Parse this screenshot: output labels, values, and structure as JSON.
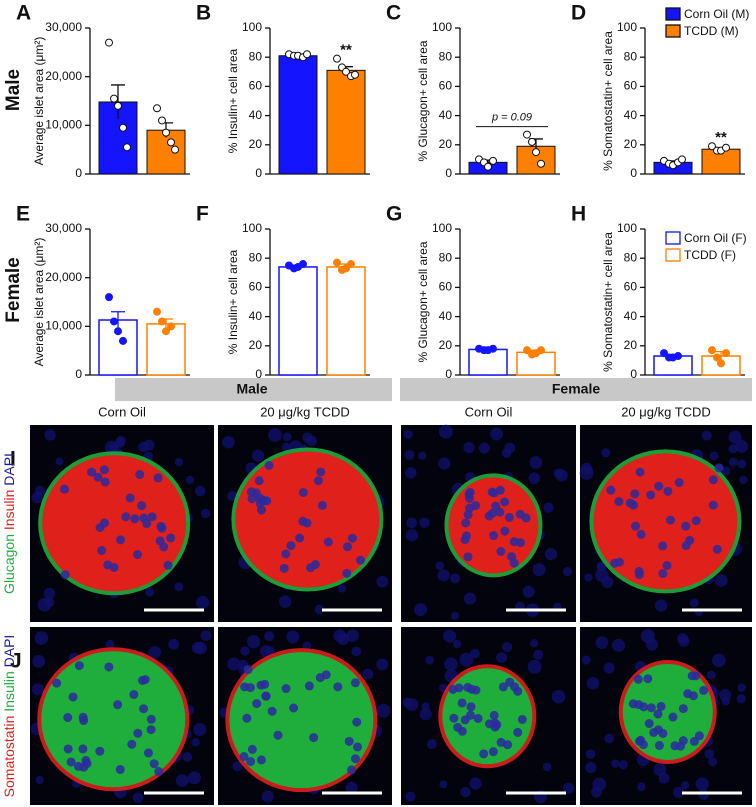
{
  "row_labels": [
    "Male",
    "Female"
  ],
  "chart_data": [
    {
      "type": "bar",
      "panel": "A",
      "ylabel": "Average islet area (μm²)",
      "ylim": [
        0,
        30000
      ],
      "yticks": [
        0,
        {
          "value": 10000,
          "label": "10,000"
        },
        {
          "value": 20000,
          "label": "20,000"
        },
        {
          "value": 30000,
          "label": "30,000"
        }
      ],
      "filled": true,
      "series": [
        {
          "color": "#1414ff",
          "values": [
            14800
          ],
          "errors": [
            3500
          ],
          "points": [
            27000,
            15500,
            14000,
            9500,
            5500
          ]
        },
        {
          "color": "#ff8000",
          "values": [
            9000
          ],
          "errors": [
            1500
          ],
          "points": [
            13500,
            11000,
            8500,
            6500,
            5000
          ]
        }
      ]
    },
    {
      "type": "bar",
      "panel": "B",
      "ylabel": "% Insulin+ cell area",
      "ylim": [
        0,
        100
      ],
      "yticks": [
        0,
        20,
        40,
        60,
        80,
        100
      ],
      "filled": true,
      "series": [
        {
          "color": "#1414ff",
          "values": [
            81
          ],
          "errors": [
            1
          ],
          "points": [
            82,
            81,
            81,
            80,
            82
          ]
        },
        {
          "color": "#ff8000",
          "values": [
            71
          ],
          "errors": [
            2.5
          ],
          "points": [
            79,
            73,
            70,
            67,
            68
          ],
          "annotation": "**"
        }
      ]
    },
    {
      "type": "bar",
      "panel": "C",
      "ylabel": "% Glucagon+ cell area",
      "ylim": [
        0,
        100
      ],
      "yticks": [
        0,
        20,
        40,
        60,
        80,
        100
      ],
      "filled": true,
      "comparison": "p = 0.09",
      "series": [
        {
          "color": "#1414ff",
          "values": [
            8
          ],
          "errors": [
            1.5
          ],
          "points": [
            10,
            8,
            5,
            9
          ]
        },
        {
          "color": "#ff8000",
          "values": [
            19
          ],
          "errors": [
            5
          ],
          "points": [
            27,
            22,
            15,
            7
          ]
        }
      ]
    },
    {
      "type": "bar",
      "panel": "D",
      "ylabel": "% Somatostatin+ cell area",
      "ylim": [
        0,
        100
      ],
      "yticks": [
        0,
        20,
        40,
        60,
        80,
        100
      ],
      "filled": true,
      "legend": "right",
      "series": [
        {
          "name": "Corn Oil (M)",
          "color": "#1414ff",
          "values": [
            8
          ],
          "errors": [
            1
          ],
          "points": [
            9,
            7,
            6,
            8,
            10
          ]
        },
        {
          "name": "TCDD (M)",
          "color": "#ff8000",
          "values": [
            17
          ],
          "errors": [
            1
          ],
          "points": [
            19,
            16,
            16,
            18
          ],
          "annotation": "**"
        }
      ]
    },
    {
      "type": "bar",
      "panel": "E",
      "ylabel": "Average islet area (μm²)",
      "ylim": [
        0,
        30000
      ],
      "yticks": [
        0,
        {
          "value": 10000,
          "label": "10,000"
        },
        {
          "value": 20000,
          "label": "20,000"
        },
        {
          "value": 30000,
          "label": "30,000"
        }
      ],
      "filled": false,
      "series": [
        {
          "color": "#1414ff",
          "values": [
            11300
          ],
          "errors": [
            1700
          ],
          "points": [
            16000,
            11000,
            9000,
            7000
          ]
        },
        {
          "color": "#ff8000",
          "values": [
            10500
          ],
          "errors": [
            1000
          ],
          "points": [
            13000,
            11000,
            9000,
            10000
          ]
        }
      ]
    },
    {
      "type": "bar",
      "panel": "F",
      "ylabel": "% Insulin+ cell area",
      "ylim": [
        0,
        100
      ],
      "yticks": [
        0,
        20,
        40,
        60,
        80,
        100
      ],
      "filled": false,
      "series": [
        {
          "color": "#1414ff",
          "values": [
            74
          ],
          "errors": [
            1
          ],
          "points": [
            75,
            73,
            74,
            76
          ]
        },
        {
          "color": "#ff8000",
          "values": [
            74
          ],
          "errors": [
            2
          ],
          "points": [
            77,
            72,
            73,
            76
          ]
        }
      ]
    },
    {
      "type": "bar",
      "panel": "G",
      "ylabel": "% Glucagon+ cell area",
      "ylim": [
        0,
        100
      ],
      "yticks": [
        0,
        20,
        40,
        60,
        80,
        100
      ],
      "filled": false,
      "series": [
        {
          "color": "#1414ff",
          "values": [
            17.5
          ],
          "errors": [
            0.5
          ],
          "points": [
            18,
            17,
            17,
            18
          ]
        },
        {
          "color": "#ff8000",
          "values": [
            15.5
          ],
          "errors": [
            1.5
          ],
          "points": [
            17,
            14,
            15,
            17
          ]
        }
      ]
    },
    {
      "type": "bar",
      "panel": "H",
      "ylabel": "% Somatostatin+ cell area",
      "ylim": [
        0,
        100
      ],
      "yticks": [
        0,
        20,
        40,
        60,
        80,
        100
      ],
      "filled": false,
      "legend": "right",
      "series": [
        {
          "name": "Corn Oil (F)",
          "color": "#1414ff",
          "values": [
            13
          ],
          "errors": [
            1
          ],
          "points": [
            15,
            12,
            12,
            13
          ]
        },
        {
          "name": "TCDD (F)",
          "color": "#ff8000",
          "values": [
            13
          ],
          "errors": [
            3
          ],
          "points": [
            17,
            12,
            8,
            15
          ]
        }
      ]
    }
  ],
  "image_panel": {
    "group_labels": [
      "Male",
      "Female"
    ],
    "column_labels": [
      "Corn Oil",
      "20 μg/kg TCDD",
      "Corn Oil",
      "20 μg/kg TCDD"
    ],
    "rows": [
      {
        "letter": "I",
        "stains": [
          {
            "text": "Glucagon",
            "color": "#1fae3c"
          },
          {
            "text": "Insulin",
            "color": "#e0201b"
          },
          {
            "text": "DAPI",
            "color": "#1c1ca8"
          }
        ]
      },
      {
        "letter": "J",
        "stains": [
          {
            "text": "Somatostatin",
            "color": "#e0201b"
          },
          {
            "text": "Insulin",
            "color": "#1fae3c"
          },
          {
            "text": "DAPI",
            "color": "#1c1ca8"
          }
        ]
      }
    ]
  }
}
